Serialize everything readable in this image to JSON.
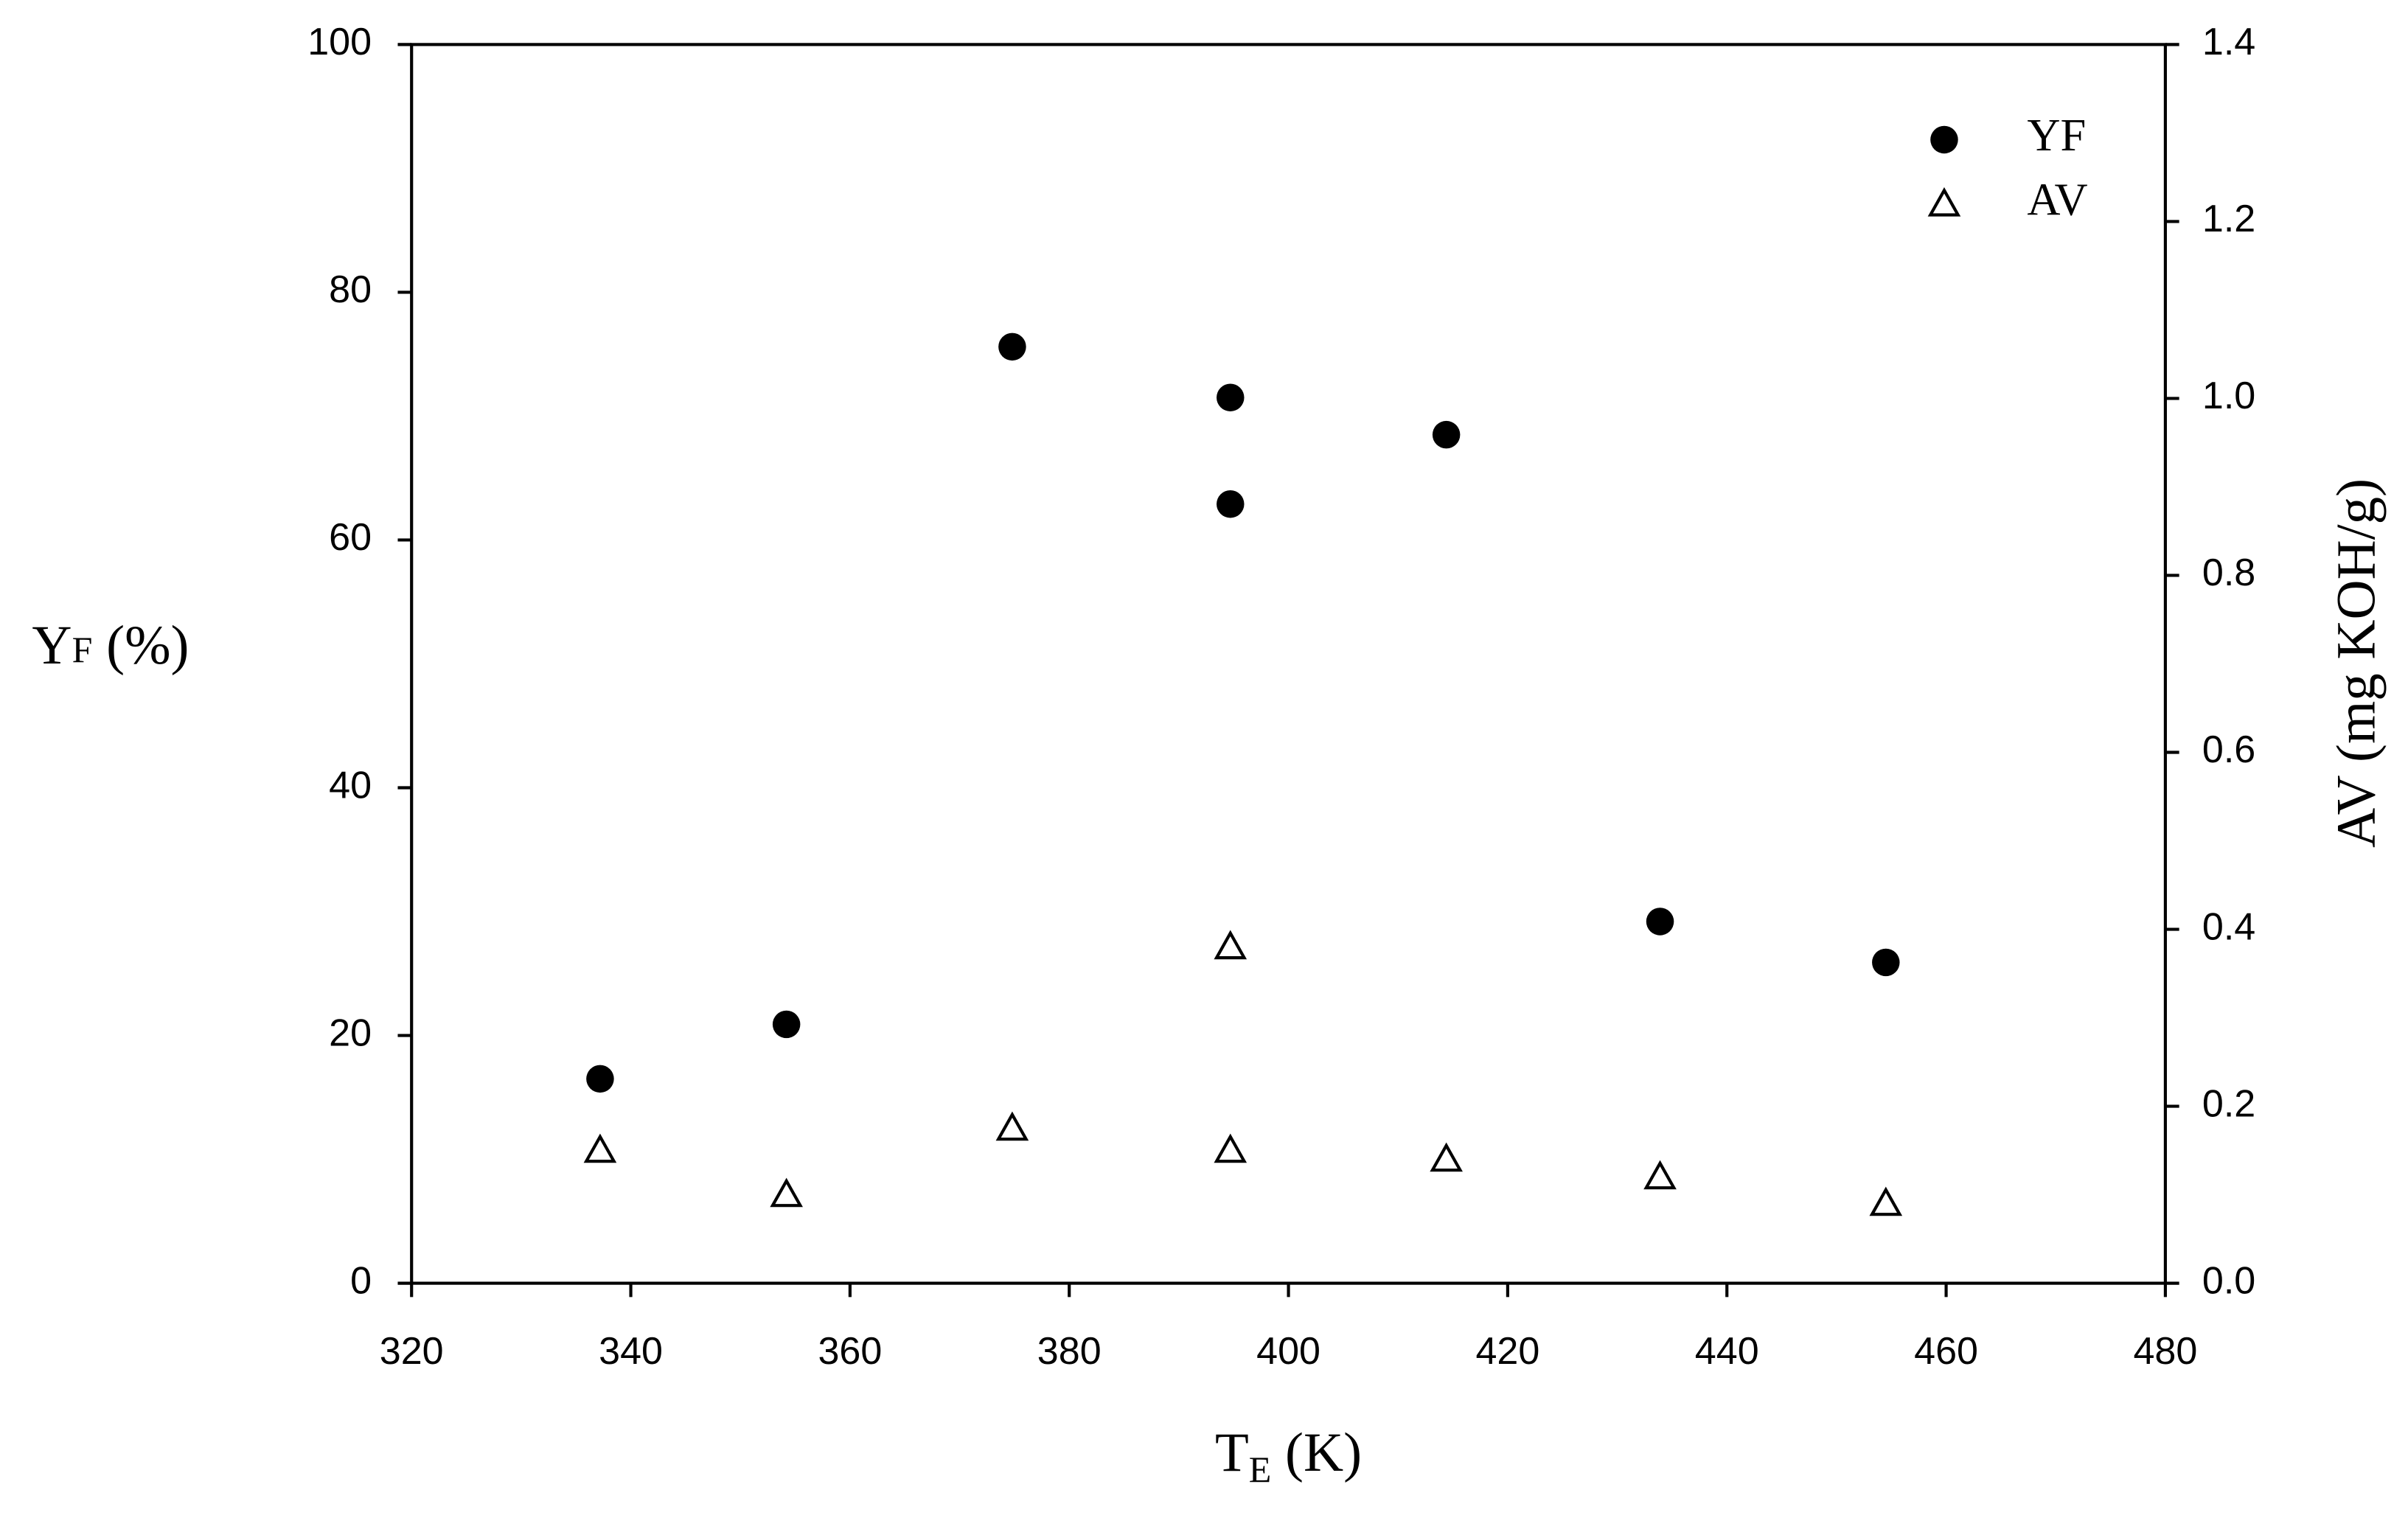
{
  "chart_data": {
    "type": "scatter",
    "xlabel": {
      "main": "T",
      "sub": "E",
      "suffix": " (K)"
    },
    "ylabel": {
      "main": "Y",
      "sub": "F",
      "suffix": " (%)"
    },
    "y2label": "AV  (mg KOH/g)",
    "xlim": [
      320,
      480
    ],
    "xticks": [
      320,
      340,
      360,
      380,
      400,
      420,
      440,
      460,
      480
    ],
    "ylim": [
      0,
      100
    ],
    "yticks": [
      0,
      20,
      40,
      60,
      80,
      100
    ],
    "y2lim": [
      0,
      1.4
    ],
    "y2ticks": [
      {
        "value": 0,
        "label": "0.0"
      },
      0.2,
      0.4,
      0.6,
      0.8,
      {
        "value": 1,
        "label": "1.0"
      },
      1.2,
      1.4
    ],
    "legend": "upper right",
    "series": [
      {
        "name": "YF",
        "color": "#000000",
        "marker": "circle",
        "x": [
          337.2,
          354.2,
          374.8,
          394.7,
          394.7,
          414.4,
          433.9,
          454.5
        ],
        "values": [
          16.5,
          20.9,
          75.6,
          71.5,
          62.9,
          68.5,
          29.2,
          25.9
        ]
      },
      {
        "name": "AV",
        "color": "#000000",
        "marker": "triangle",
        "axis": "y2",
        "x": [
          337.2,
          354.2,
          374.8,
          394.7,
          394.7,
          414.4,
          433.9,
          454.5
        ],
        "values": [
          0.15,
          0.1,
          0.175,
          0.38,
          0.15,
          0.14,
          0.12,
          0.09
        ]
      }
    ]
  }
}
